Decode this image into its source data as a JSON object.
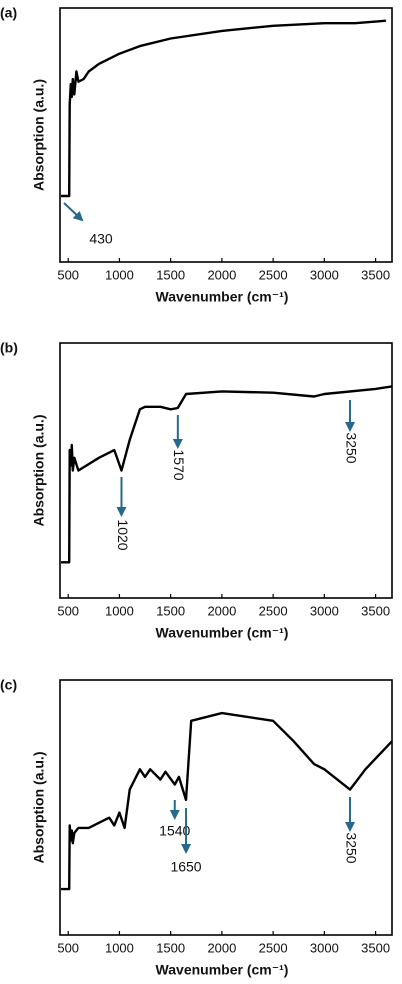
{
  "chart_data": [
    {
      "type": "line",
      "panel_label": "(a)",
      "xlabel": "Wavenumber (cm⁻¹)",
      "ylabel": "Absorption  (a.u.)",
      "color": "#000000",
      "annotation_color": "#27698a",
      "xlim": [
        420,
        3660
      ],
      "xticks": [
        500,
        1000,
        1500,
        2000,
        2500,
        3000,
        3500
      ],
      "ylim": [
        0,
        100
      ],
      "x": [
        430,
        510,
        515,
        525,
        535,
        545,
        560,
        580,
        600,
        650,
        700,
        800,
        1000,
        1200,
        1500,
        2000,
        2500,
        3000,
        3300,
        3600
      ],
      "values": [
        26,
        26,
        62,
        70,
        65,
        72,
        66,
        75,
        71,
        72,
        75,
        78,
        82,
        85,
        88,
        91,
        93,
        94,
        94,
        95
      ],
      "annotations": [
        {
          "text": "430",
          "x": 430
        }
      ]
    },
    {
      "type": "line",
      "panel_label": "(b)",
      "xlabel": "Wavenumber (cm⁻¹)",
      "ylabel": "Absorption  (a.u.)",
      "color": "#000000",
      "annotation_color": "#27698a",
      "xlim": [
        420,
        3660
      ],
      "xticks": [
        500,
        1000,
        1500,
        2000,
        2500,
        3000,
        3500
      ],
      "ylim": [
        0,
        100
      ],
      "x": [
        430,
        510,
        515,
        525,
        535,
        545,
        560,
        600,
        800,
        950,
        1020,
        1100,
        1200,
        1250,
        1400,
        1500,
        1570,
        1650,
        2000,
        2500,
        2900,
        3000,
        3500,
        3660
      ],
      "values": [
        14,
        14,
        58,
        52,
        60,
        50,
        55,
        50,
        55,
        58,
        50,
        62,
        74,
        75,
        75,
        74,
        74.5,
        80,
        81,
        80.5,
        79,
        80,
        82,
        83
      ],
      "annotations": [
        {
          "text": "1020",
          "x": 1020
        },
        {
          "text": "1570",
          "x": 1570
        },
        {
          "text": "3250",
          "x": 3250
        }
      ]
    },
    {
      "type": "line",
      "panel_label": "(c)",
      "xlabel": "Wavenumber (cm⁻¹)",
      "ylabel": "Absorption  (a.u.)",
      "color": "#000000",
      "annotation_color": "#27698a",
      "xlim": [
        420,
        3660
      ],
      "xticks": [
        500,
        1000,
        1500,
        2000,
        2500,
        3000,
        3500
      ],
      "ylim": [
        0,
        100
      ],
      "x": [
        430,
        510,
        515,
        525,
        535,
        545,
        560,
        600,
        700,
        900,
        950,
        1000,
        1050,
        1100,
        1200,
        1250,
        1300,
        1400,
        1450,
        1540,
        1580,
        1650,
        1700,
        2000,
        2500,
        2700,
        2900,
        3000,
        3250,
        3400,
        3660
      ],
      "values": [
        18,
        18,
        43,
        37,
        41,
        36,
        40,
        42,
        42,
        46,
        43,
        48,
        42,
        57,
        65,
        62,
        65,
        61,
        64,
        59,
        62,
        53,
        84,
        87,
        84,
        76,
        67,
        65,
        57,
        65,
        76
      ],
      "annotations": [
        {
          "text": "1540",
          "x": 1540
        },
        {
          "text": "1650",
          "x": 1650
        },
        {
          "text": "3250",
          "x": 3250
        }
      ]
    }
  ]
}
